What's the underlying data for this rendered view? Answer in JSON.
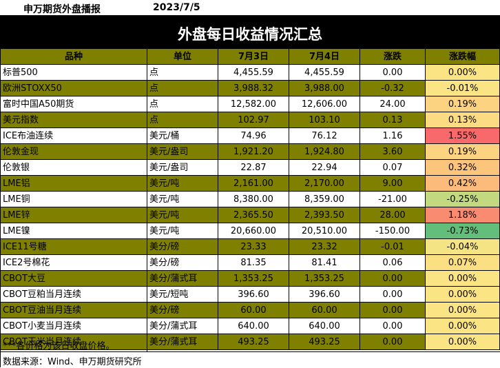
{
  "header": {
    "brand": "申万期货外盘播报",
    "date": "2023/7/5"
  },
  "title": "外盘每日收益情况汇总",
  "columns": [
    "品种",
    "单位",
    "7月3日",
    "7月4日",
    "涨跌",
    "涨跌幅"
  ],
  "rows": [
    {
      "name": "标普500",
      "unit": "点",
      "d1": "4,455.59",
      "d2": "4,455.59",
      "chg": "0.00",
      "pct": "0.00%",
      "pct_color": "#fbe484",
      "olive": false
    },
    {
      "name": "欧洲STOXX50",
      "unit": "点",
      "d1": "3,988.32",
      "d2": "3,988.00",
      "chg": "-0.32",
      "pct": "-0.01%",
      "pct_color": "#fbe484",
      "olive": true
    },
    {
      "name": "富时中国A50期货",
      "unit": "点",
      "d1": "12,582.00",
      "d2": "12,606.00",
      "chg": "24.00",
      "pct": "0.19%",
      "pct_color": "#fcd380",
      "olive": false
    },
    {
      "name": "美元指数",
      "unit": "点",
      "d1": "102.97",
      "d2": "103.10",
      "chg": "0.13",
      "pct": "0.13%",
      "pct_color": "#fcdc82",
      "olive": true
    },
    {
      "name": "ICE布油连续",
      "unit": "美元/桶",
      "d1": "74.96",
      "d2": "76.12",
      "chg": "1.16",
      "pct": "1.55%",
      "pct_color": "#f8696b",
      "olive": false
    },
    {
      "name": "伦敦金现",
      "unit": "美元/盎司",
      "d1": "1,921.20",
      "d2": "1,924.80",
      "chg": "3.60",
      "pct": "0.19%",
      "pct_color": "#fcd380",
      "olive": true
    },
    {
      "name": "伦敦银",
      "unit": "美元/盎司",
      "d1": "22.87",
      "d2": "22.94",
      "chg": "0.07",
      "pct": "0.32%",
      "pct_color": "#fcc57c",
      "olive": false
    },
    {
      "name": "LME铝",
      "unit": "美元/吨",
      "d1": "2,161.00",
      "d2": "2,170.00",
      "chg": "9.00",
      "pct": "0.42%",
      "pct_color": "#fbbb7a",
      "olive": true
    },
    {
      "name": "LME铜",
      "unit": "美元/吨",
      "d1": "8,380.00",
      "d2": "8,359.00",
      "chg": "-21.00",
      "pct": "-0.25%",
      "pct_color": "#c3d980",
      "olive": false
    },
    {
      "name": "LME锌",
      "unit": "美元/吨",
      "d1": "2,365.50",
      "d2": "2,393.50",
      "chg": "28.00",
      "pct": "1.18%",
      "pct_color": "#f98b71",
      "olive": true
    },
    {
      "name": "LME镍",
      "unit": "美元/吨",
      "d1": "20,660.00",
      "d2": "20,510.00",
      "chg": "-150.00",
      "pct": "-0.73%",
      "pct_color": "#63be7b",
      "olive": false
    },
    {
      "name": "ICE11号糖",
      "unit": "美分/磅",
      "d1": "23.33",
      "d2": "23.32",
      "chg": "-0.01",
      "pct": "-0.04%",
      "pct_color": "#f4e484",
      "olive": true
    },
    {
      "name": "ICE2号棉花",
      "unit": "美分/磅",
      "d1": "81.35",
      "d2": "81.41",
      "chg": "0.06",
      "pct": "0.07%",
      "pct_color": "#fbe083",
      "olive": false
    },
    {
      "name": "CBOT大豆",
      "unit": "美分/蒲式耳",
      "d1": "1,353.25",
      "d2": "1,353.25",
      "chg": "0.00",
      "pct": "0.00%",
      "pct_color": "#fbe484",
      "olive": true
    },
    {
      "name": "CBOT豆粕当月连续",
      "unit": "美元/短吨",
      "d1": "396.60",
      "d2": "396.60",
      "chg": "0.00",
      "pct": "0.00%",
      "pct_color": "#fbe484",
      "olive": false
    },
    {
      "name": "CBOT豆油当月连续",
      "unit": "美分/磅",
      "d1": "60.00",
      "d2": "60.00",
      "chg": "0.00",
      "pct": "0.00%",
      "pct_color": "#fbe484",
      "olive": true
    },
    {
      "name": "CBOT小麦当月连续",
      "unit": "美分/蒲式耳",
      "d1": "640.00",
      "d2": "640.00",
      "chg": "0.00",
      "pct": "0.00%",
      "pct_color": "#fbe484",
      "olive": false
    },
    {
      "name": "CBOT玉米当月连续",
      "unit": "美分/蒲式耳",
      "d1": "493.25",
      "d2": "493.25",
      "chg": "0.00",
      "pct": "0.00%",
      "pct_color": "#fbe484",
      "olive": true
    }
  ],
  "footnote": "***各价格为该日收盘价格。",
  "source": "数据来源：Wind、申万期货研究所"
}
